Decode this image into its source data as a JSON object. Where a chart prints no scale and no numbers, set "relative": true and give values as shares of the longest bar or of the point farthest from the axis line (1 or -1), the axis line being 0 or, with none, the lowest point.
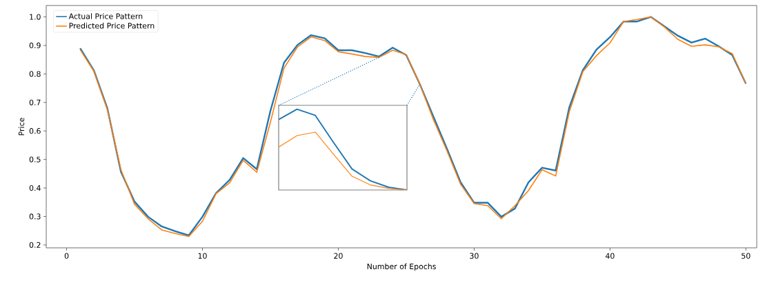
{
  "chart_data": [
    {
      "type": "line",
      "xlabel": "Number of Epochs",
      "ylabel": "Price",
      "x": [
        1,
        2,
        3,
        4,
        5,
        6,
        7,
        8,
        9,
        10,
        11,
        12,
        13,
        14,
        15,
        16,
        17,
        18,
        19,
        20,
        21,
        22,
        23,
        24,
        25,
        26,
        27,
        28,
        29,
        30,
        31,
        32,
        33,
        34,
        35,
        36,
        37,
        38,
        39,
        40,
        41,
        42,
        43,
        44,
        45,
        46,
        47,
        48,
        49,
        50
      ],
      "xlim": [
        -1.5,
        50.8
      ],
      "ylim": [
        0.19,
        1.04
      ],
      "xticks": [
        0,
        10,
        20,
        30,
        40,
        50
      ],
      "yticks": [
        0.2,
        0.3,
        0.4,
        0.5,
        0.6,
        0.7,
        0.8,
        0.9,
        {
          "value": 1.0,
          "label": "1.0"
        }
      ],
      "legend": "top left",
      "series": [
        {
          "name": "Actual Price Pattern",
          "color": "#1f77b4",
          "values": [
            0.89,
            0.813,
            0.679,
            0.457,
            0.352,
            0.299,
            0.265,
            0.248,
            0.234,
            0.299,
            0.382,
            0.428,
            0.505,
            0.466,
            0.67,
            0.839,
            0.902,
            0.936,
            0.925,
            0.883,
            0.883,
            0.873,
            0.861,
            0.892,
            0.866,
            0.764,
            0.65,
            0.537,
            0.42,
            0.348,
            0.348,
            0.299,
            0.328,
            0.42,
            0.471,
            0.461,
            0.682,
            0.813,
            0.885,
            0.929,
            0.984,
            0.984,
            1.0,
            0.967,
            0.934,
            0.91,
            0.924,
            0.897,
            0.866,
            0.766
          ]
        },
        {
          "name": "Predicted Price Pattern",
          "color": "#ff7f0e",
          "values": [
            0.885,
            0.81,
            0.675,
            0.464,
            0.343,
            0.292,
            0.253,
            0.24,
            0.23,
            0.283,
            0.38,
            0.418,
            0.497,
            0.455,
            0.63,
            0.82,
            0.895,
            0.93,
            0.917,
            0.878,
            0.87,
            0.861,
            0.858,
            0.883,
            0.868,
            0.764,
            0.64,
            0.53,
            0.413,
            0.345,
            0.338,
            0.292,
            0.338,
            0.391,
            0.464,
            0.442,
            0.667,
            0.808,
            0.864,
            0.909,
            0.984,
            0.991,
            1.0,
            0.965,
            0.921,
            0.897,
            0.902,
            0.895,
            0.871,
            0.766
          ]
        }
      ]
    },
    {
      "type": "line",
      "relative": true,
      "categories": [
        null,
        null,
        null,
        null,
        null,
        null,
        null,
        null
      ],
      "series": [
        {
          "color": "#1f77b4",
          "values": [
            0.872,
            1,
            0.923,
            0.585,
            0.261,
            0.114,
            0.034,
            0
          ]
        },
        {
          "color": "#ff7f0e",
          "values": [
            0.531,
            0.673,
            0.716,
            0.44,
            0.17,
            0.063,
            0.02,
            0
          ]
        }
      ]
    }
  ]
}
